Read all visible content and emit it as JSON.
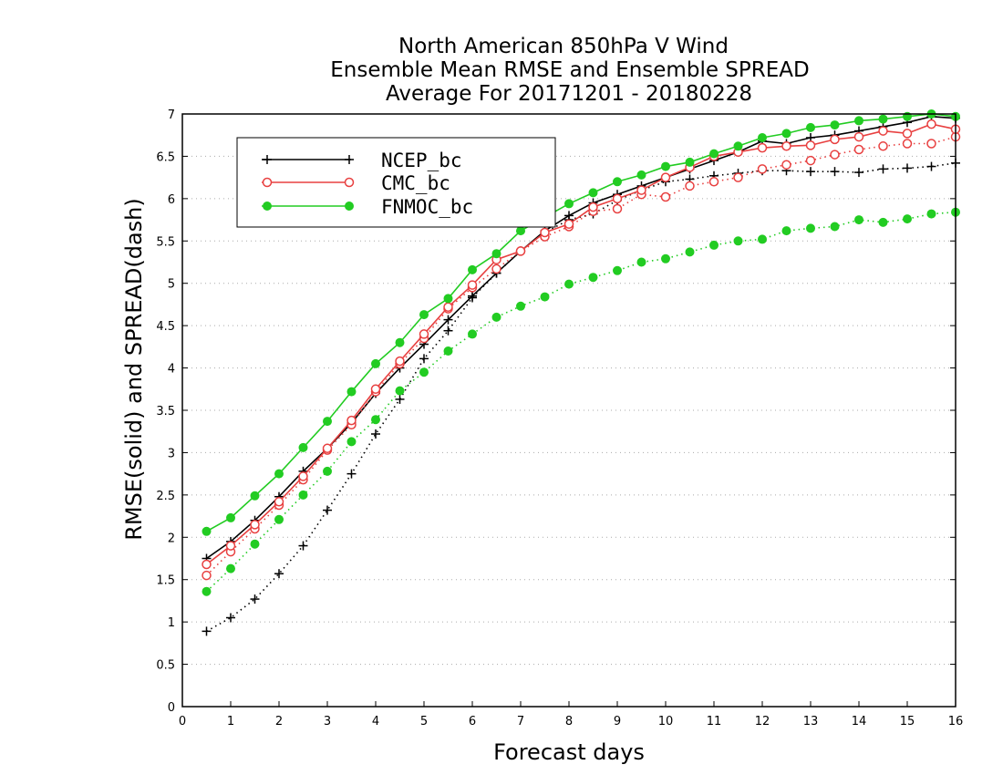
{
  "chart_data": {
    "type": "line",
    "title_lines": [
      "North American 850hPa V Wind",
      "Ensemble Mean RMSE and Ensemble SPREAD",
      "Average For 20171201 - 20180228"
    ],
    "xlabel": "Forecast days",
    "ylabel": "RMSE(solid) and SPREAD(dash)",
    "xlim": [
      0,
      16
    ],
    "ylim": [
      0,
      7
    ],
    "xticks": [
      "0",
      "1",
      "2",
      "3",
      "4",
      "5",
      "6",
      "7",
      "8",
      "9",
      "10",
      "11",
      "12",
      "13",
      "14",
      "15",
      "16"
    ],
    "yticks": [
      "0",
      "0.5",
      "1",
      "1.5",
      "2",
      "2.5",
      "3",
      "3.5",
      "4",
      "4.5",
      "5",
      "5.5",
      "6",
      "6.5",
      "7"
    ],
    "grid": "horizontal dotted",
    "legend_position": "top-left",
    "x": [
      0.5,
      1,
      1.5,
      2,
      2.5,
      3,
      3.5,
      4,
      4.5,
      5,
      5.5,
      6,
      6.5,
      7,
      7.5,
      8,
      8.5,
      9,
      9.5,
      10,
      10.5,
      11,
      11.5,
      12,
      12.5,
      13,
      13.5,
      14,
      14.5,
      15,
      15.5,
      16
    ],
    "series": [
      {
        "name": "NCEP_bc",
        "color": "#000000",
        "marker": "plus",
        "rmse": [
          1.75,
          1.95,
          2.2,
          2.48,
          2.78,
          3.05,
          3.35,
          3.7,
          4.0,
          4.28,
          4.57,
          4.85,
          5.12,
          5.38,
          5.62,
          5.8,
          5.95,
          6.05,
          6.15,
          6.25,
          6.35,
          6.45,
          6.55,
          6.68,
          6.65,
          6.72,
          6.75,
          6.8,
          6.85,
          6.9,
          6.97,
          6.95
        ],
        "spread": [
          0.89,
          1.05,
          1.27,
          1.57,
          1.9,
          2.32,
          2.75,
          3.22,
          3.63,
          4.11,
          4.44,
          4.83,
          5.12,
          5.38,
          5.6,
          5.75,
          5.82,
          5.98,
          6.1,
          6.2,
          6.23,
          6.27,
          6.3,
          6.33,
          6.33,
          6.32,
          6.32,
          6.31,
          6.35,
          6.36,
          6.38,
          6.42
        ]
      },
      {
        "name": "CMC_bc",
        "color": "#e84040",
        "marker": "circle-open",
        "rmse": [
          1.68,
          1.9,
          2.15,
          2.42,
          2.72,
          3.05,
          3.38,
          3.75,
          4.08,
          4.4,
          4.72,
          4.98,
          5.28,
          5.38,
          5.6,
          5.7,
          5.9,
          6.0,
          6.1,
          6.25,
          6.37,
          6.5,
          6.55,
          6.6,
          6.62,
          6.63,
          6.7,
          6.73,
          6.8,
          6.77,
          6.88,
          6.82
        ],
        "spread": [
          1.55,
          1.83,
          2.1,
          2.38,
          2.68,
          3.03,
          3.33,
          3.72,
          4.05,
          4.35,
          4.7,
          4.95,
          5.17,
          5.38,
          5.55,
          5.67,
          5.85,
          5.88,
          6.05,
          6.02,
          6.15,
          6.2,
          6.25,
          6.35,
          6.4,
          6.45,
          6.52,
          6.58,
          6.62,
          6.65,
          6.65,
          6.73
        ]
      },
      {
        "name": "FNMOC_bc",
        "color": "#22cc22",
        "marker": "circle-filled",
        "rmse": [
          2.07,
          2.23,
          2.49,
          2.75,
          3.06,
          3.37,
          3.72,
          4.05,
          4.3,
          4.63,
          4.82,
          5.16,
          5.35,
          5.62,
          5.78,
          5.94,
          6.07,
          6.2,
          6.28,
          6.38,
          6.43,
          6.53,
          6.62,
          6.72,
          6.77,
          6.84,
          6.87,
          6.92,
          6.94,
          6.97,
          7.0,
          6.97
        ],
        "spread": [
          1.36,
          1.63,
          1.92,
          2.21,
          2.5,
          2.78,
          3.13,
          3.39,
          3.73,
          3.95,
          4.2,
          4.4,
          4.6,
          4.73,
          4.84,
          4.99,
          5.07,
          5.15,
          5.25,
          5.29,
          5.37,
          5.45,
          5.5,
          5.52,
          5.62,
          5.65,
          5.67,
          5.75,
          5.72,
          5.76,
          5.82,
          5.84
        ]
      }
    ]
  }
}
